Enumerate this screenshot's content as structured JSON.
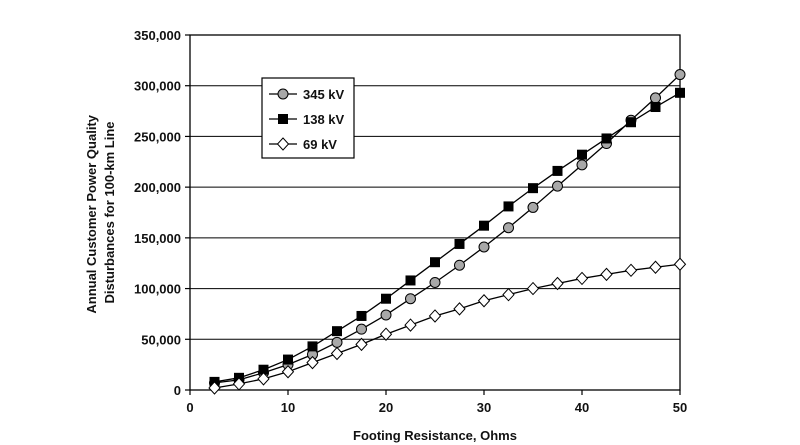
{
  "chart_data": {
    "type": "line",
    "xlabel": "Footing Resistance, Ohms",
    "ylabel_lines": [
      "Annual Customer Power Quality",
      "Disturbances for 100-km Line"
    ],
    "xlim": [
      0,
      50
    ],
    "ylim": [
      0,
      350000
    ],
    "x_ticks": [
      0,
      10,
      20,
      30,
      40,
      50
    ],
    "x_tick_labels": [
      "0",
      "10",
      "20",
      "30",
      "40",
      "50"
    ],
    "y_ticks": [
      0,
      50000,
      100000,
      150000,
      200000,
      250000,
      300000,
      350000
    ],
    "y_tick_labels": [
      "0",
      "50,000",
      "100,000",
      "150,000",
      "200,000",
      "250,000",
      "300,000",
      "350,000"
    ],
    "grid": "horizontal",
    "legend_position": "top-left",
    "x": [
      2.5,
      5,
      7.5,
      10,
      12.5,
      15,
      17.5,
      20,
      22.5,
      25,
      27.5,
      30,
      32.5,
      35,
      37.5,
      40,
      42.5,
      45,
      47.5,
      50
    ],
    "series": [
      {
        "name": "345 kV",
        "marker": "circle",
        "marker_fill": "#a8a8a8",
        "values": [
          7000,
          10000,
          17000,
          25000,
          35000,
          47000,
          60000,
          74000,
          90000,
          106000,
          123000,
          141000,
          160000,
          180000,
          201000,
          222000,
          243000,
          266000,
          288000,
          311000
        ]
      },
      {
        "name": "138 kV",
        "marker": "square",
        "marker_fill": "#000000",
        "values": [
          8000,
          12000,
          20000,
          30000,
          43000,
          58000,
          73000,
          90000,
          108000,
          126000,
          144000,
          162000,
          181000,
          199000,
          216000,
          232000,
          248000,
          264000,
          279000,
          293000
        ]
      },
      {
        "name": "69 kV",
        "marker": "diamond",
        "marker_fill": "#ffffff",
        "values": [
          2000,
          6000,
          11000,
          18000,
          27000,
          36000,
          45000,
          55000,
          64000,
          73000,
          80000,
          88000,
          94000,
          100000,
          105000,
          110000,
          114000,
          118000,
          121000,
          124000
        ]
      }
    ]
  }
}
